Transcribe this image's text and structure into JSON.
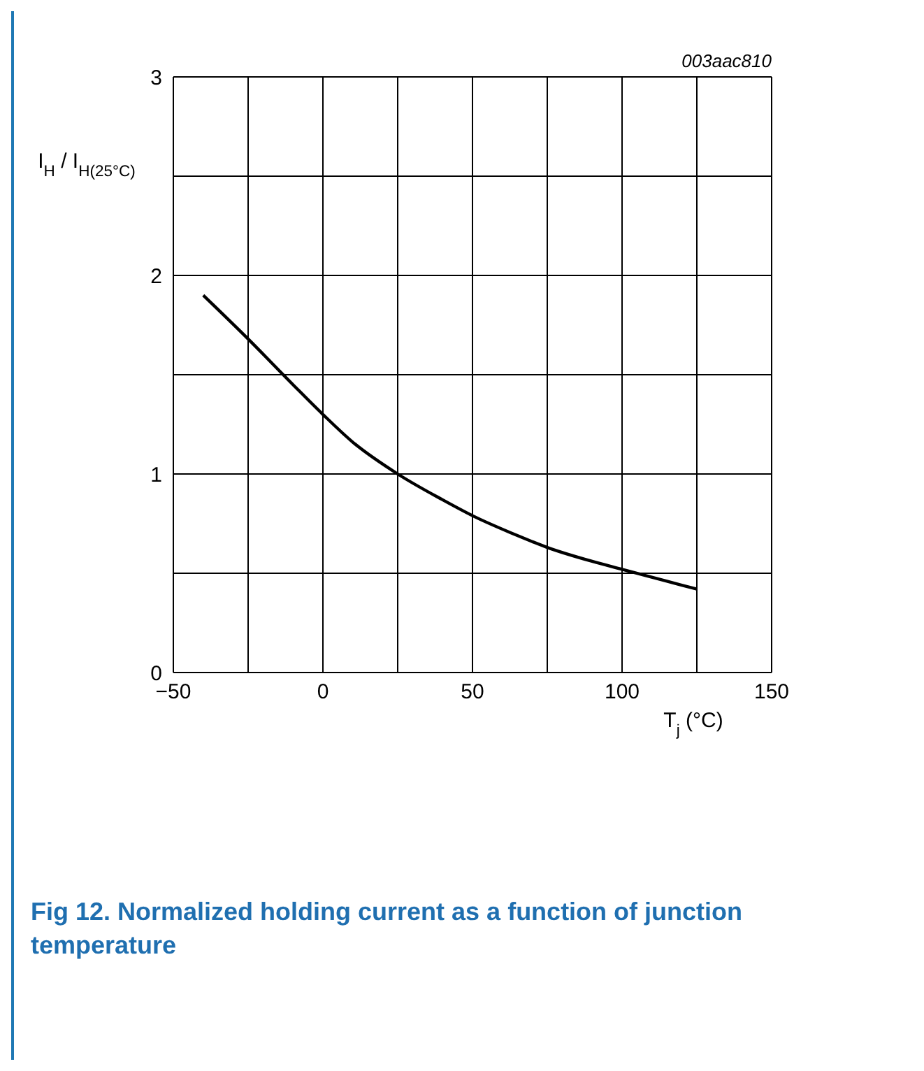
{
  "chart_data": {
    "type": "line",
    "title": "Fig 12.  Normalized holding current as a function of junction temperature",
    "xlabel": "T$_{j}$ (°C)",
    "ylabel": "I$_{H}$ / I$_{H(25°C)}$",
    "annotations": [
      "003aac810"
    ],
    "x": [
      -40,
      -25,
      -10,
      0,
      10,
      25,
      40,
      50,
      65,
      75,
      90,
      100,
      115,
      125
    ],
    "series": [
      {
        "color": "#000000",
        "values": [
          1.9,
          1.68,
          1.45,
          1.3,
          1.16,
          1.0,
          0.87,
          0.79,
          0.69,
          0.63,
          0.56,
          0.52,
          0.46,
          0.42
        ]
      }
    ],
    "xlim": [
      -50,
      150
    ],
    "xticks": [
      -50,
      {
        "value": -25,
        "label": null
      },
      0,
      {
        "value": 25,
        "label": null
      },
      50,
      {
        "value": 75,
        "label": null
      },
      100,
      {
        "value": 125,
        "label": null
      },
      150
    ],
    "ylim": [
      0,
      3
    ],
    "yticks": [
      0,
      {
        "value": 0.5,
        "label": null
      },
      1,
      {
        "value": 1.5,
        "label": null
      },
      2,
      {
        "value": 2.5,
        "label": null
      },
      3
    ],
    "grid": true,
    "marker": "none",
    "line_style": "solid"
  }
}
